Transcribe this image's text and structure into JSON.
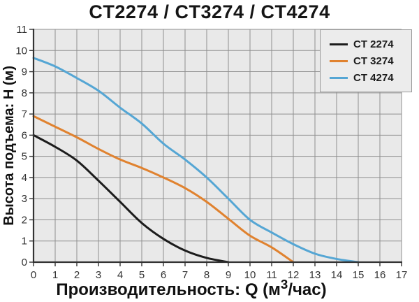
{
  "title": "CT2274 / CT3274 / CT4274",
  "axes": {
    "x": {
      "label_prefix": "Производительность: Q (м",
      "label_sup": "3",
      "label_suffix": "/час)",
      "ticks": [
        0,
        1,
        2,
        3,
        4,
        5,
        6,
        7,
        8,
        9,
        10,
        11,
        12,
        13,
        14,
        15,
        16,
        17
      ]
    },
    "y": {
      "label": "Высота подъема: H (м)",
      "ticks": [
        0,
        1,
        2,
        3,
        4,
        5,
        6,
        7,
        8,
        9,
        10,
        11
      ]
    }
  },
  "legend": {
    "items": [
      "CT 2274",
      "CT 3274",
      "CT 4274"
    ]
  },
  "colors": {
    "plot_background": "#e9e9e9",
    "gridline": "#8f8f8f",
    "axis": "#333333",
    "tick_label": "#333333",
    "title_text": "#151515",
    "legend_background": "#ececec",
    "legend_border": "#999999",
    "series_ct2274": "#1c1c1c",
    "series_ct3274": "#e0822f",
    "series_ct4274": "#55a6d4"
  },
  "chart_data": {
    "type": "line",
    "title": "CT2274 / CT3274 / CT4274",
    "xlabel": "Производительность: Q (м3/час)",
    "ylabel": "Высота подъема: H (м)",
    "xlim": [
      0,
      17
    ],
    "ylim": [
      0,
      11
    ],
    "grid": true,
    "legend_position": "top-right",
    "series": [
      {
        "name": "CT 2274",
        "color": "#1c1c1c",
        "x": [
          0,
          1,
          2,
          3,
          4,
          5,
          6,
          7,
          8,
          9
        ],
        "y": [
          6.0,
          5.45,
          4.8,
          3.85,
          2.85,
          1.85,
          1.1,
          0.55,
          0.2,
          0
        ]
      },
      {
        "name": "CT 3274",
        "color": "#e0822f",
        "x": [
          0,
          1,
          2,
          3,
          4,
          5,
          6,
          7,
          8,
          9,
          10,
          11,
          12
        ],
        "y": [
          6.9,
          6.4,
          5.9,
          5.35,
          4.85,
          4.45,
          4.0,
          3.5,
          2.85,
          2.05,
          1.25,
          0.7,
          0
        ]
      },
      {
        "name": "CT 4274",
        "color": "#55a6d4",
        "x": [
          0,
          1,
          2,
          3,
          4,
          5,
          6,
          7,
          8,
          9,
          10,
          11,
          12,
          13,
          14,
          15
        ],
        "y": [
          9.65,
          9.25,
          8.7,
          8.1,
          7.3,
          6.55,
          5.6,
          4.85,
          4.0,
          3.0,
          2.0,
          1.4,
          0.85,
          0.4,
          0.15,
          0
        ]
      }
    ]
  }
}
